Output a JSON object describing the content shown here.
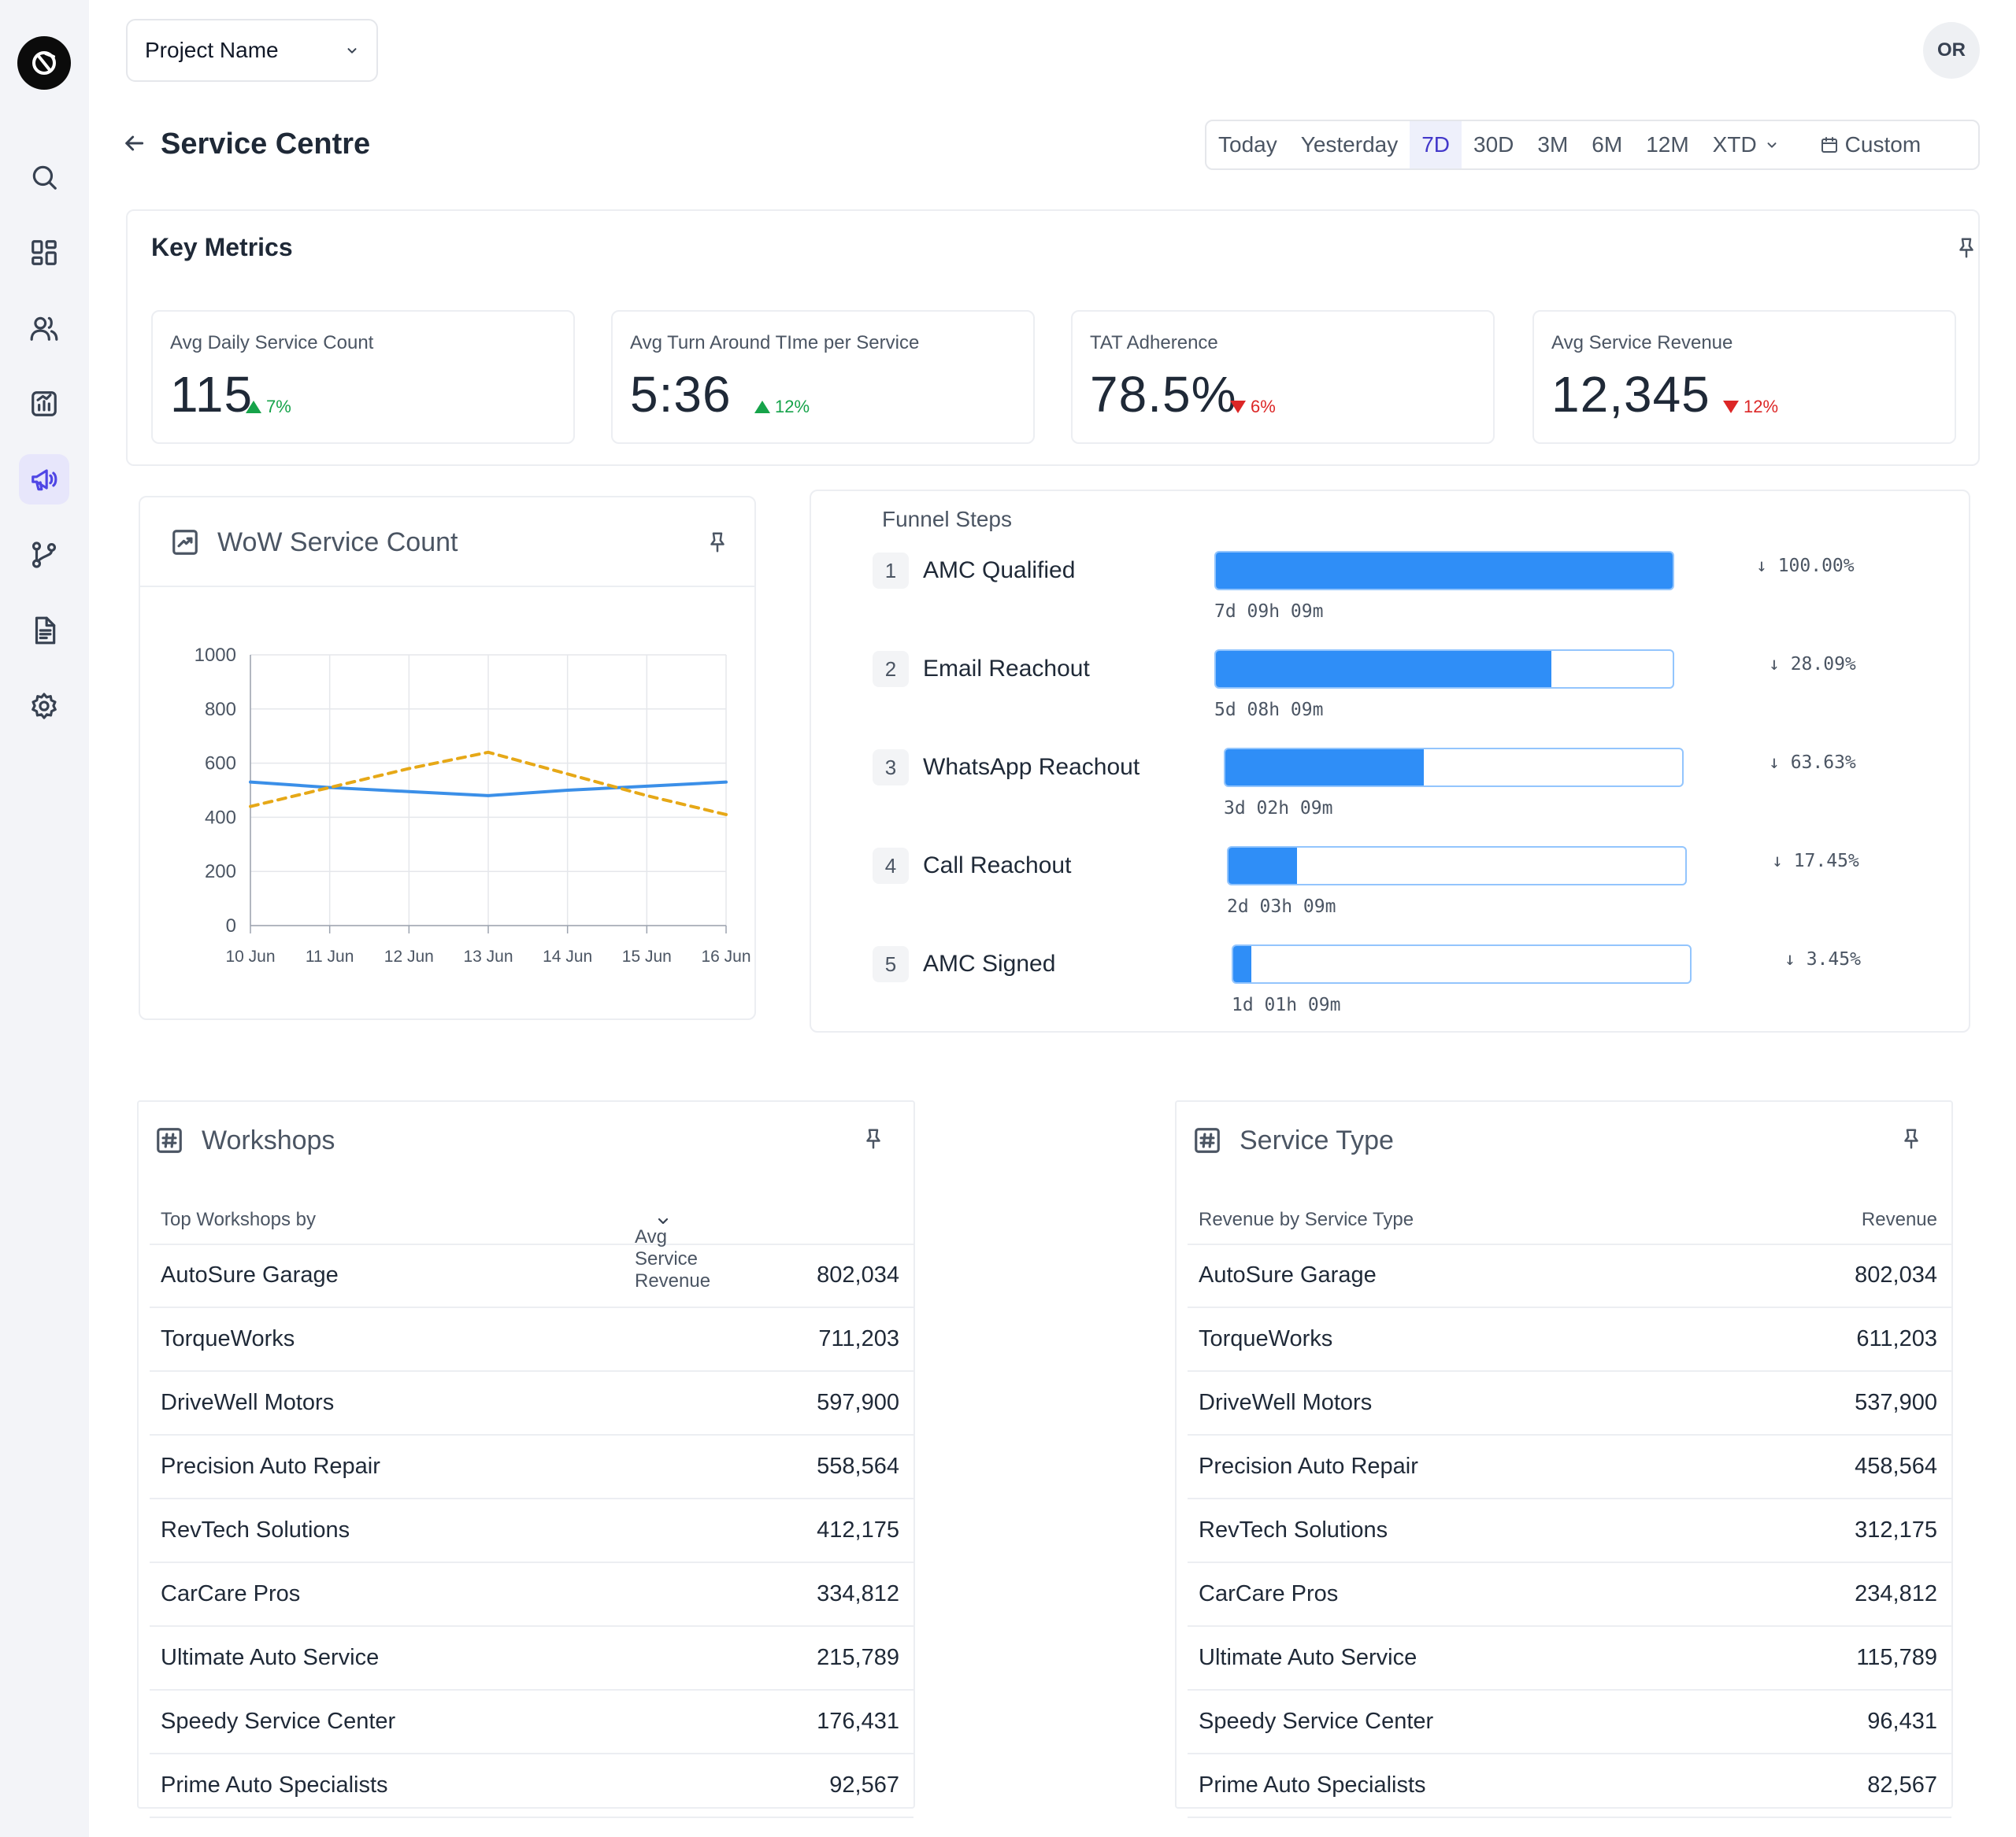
{
  "header": {
    "project_select": "Project Name",
    "avatar_initials": "OR",
    "page_title": "Service Centre"
  },
  "date_range": {
    "options": [
      "Today",
      "Yesterday",
      "7D",
      "30D",
      "3M",
      "6M",
      "12M",
      "XTD",
      "Custom"
    ],
    "selected": "7D"
  },
  "sidebar": {
    "items": [
      "search-icon",
      "dashboard-icon",
      "users-icon",
      "analytics-icon",
      "megaphone-icon",
      "branch-icon",
      "document-icon",
      "settings-icon"
    ],
    "active": "megaphone-icon"
  },
  "key_metrics": {
    "title": "Key Metrics",
    "cards": [
      {
        "label": "Avg Daily Service Count",
        "value": "115",
        "delta": "7%",
        "direction": "up"
      },
      {
        "label": "Avg Turn Around TIme per Service",
        "value": "5:36",
        "delta": "12%",
        "direction": "up"
      },
      {
        "label": "TAT Adherence",
        "value": "78.5%",
        "delta": "6%",
        "direction": "down"
      },
      {
        "label": "Avg Service Revenue",
        "value": "12,345",
        "delta": "12%",
        "direction": "down"
      }
    ]
  },
  "wow_panel": {
    "title": "WoW Service Count"
  },
  "chart_data": {
    "type": "line",
    "title": "WoW Service Count",
    "x": [
      "10 Jun",
      "11 Jun",
      "12 Jun",
      "13 Jun",
      "14 Jun",
      "15 Jun",
      "16 Jun"
    ],
    "y_ticks": [
      "1000",
      "800",
      "600",
      "400",
      "200",
      "0"
    ],
    "ylim": [
      0,
      1000
    ],
    "grid": true,
    "series": [
      {
        "values": [
          530,
          510,
          495,
          480,
          500,
          515,
          530
        ],
        "color": "#3b8fe8",
        "style": "solid"
      },
      {
        "values": [
          440,
          510,
          580,
          640,
          560,
          480,
          410
        ],
        "color": "#e6a817",
        "style": "dashed"
      }
    ]
  },
  "funnel": {
    "title": "Funnel Steps",
    "steps": [
      {
        "num": "1",
        "label": "AMC Qualified",
        "fill": 1.0,
        "time": "7d 09h 09m",
        "pct": "↓ 100.00%"
      },
      {
        "num": "2",
        "label": "Email Reachout",
        "fill": 0.735,
        "time": "5d 08h 09m",
        "pct": "↓ 28.09%"
      },
      {
        "num": "3",
        "label": "WhatsApp Reachout",
        "fill": 0.435,
        "time": "3d 02h 09m",
        "pct": "↓ 63.63%"
      },
      {
        "num": "4",
        "label": "Call Reachout",
        "fill": 0.15,
        "time": "2d 03h 09m",
        "pct": "↓ 17.45%"
      },
      {
        "num": "5",
        "label": "AMC Signed",
        "fill": 0.04,
        "time": "1d 01h 09m",
        "pct": "↓ 3.45%"
      }
    ]
  },
  "workshops": {
    "title": "Workshops",
    "col1": "Top Workshops by",
    "col2": "Avg Service Revenue",
    "rows": [
      {
        "name": "AutoSure Garage",
        "value": "802,034"
      },
      {
        "name": "TorqueWorks",
        "value": "711,203"
      },
      {
        "name": "DriveWell Motors",
        "value": "597,900"
      },
      {
        "name": "Precision Auto Repair",
        "value": "558,564"
      },
      {
        "name": "RevTech Solutions",
        "value": "412,175"
      },
      {
        "name": "CarCare Pros",
        "value": "334,812"
      },
      {
        "name": "Ultimate Auto Service",
        "value": "215,789"
      },
      {
        "name": "Speedy Service Center",
        "value": "176,431"
      },
      {
        "name": "Prime Auto Specialists",
        "value": "92,567"
      }
    ]
  },
  "service_type": {
    "title": "Service Type",
    "col1": "Revenue by Service Type",
    "col2": "Revenue",
    "rows": [
      {
        "name": "AutoSure Garage",
        "value": "802,034"
      },
      {
        "name": "TorqueWorks",
        "value": "611,203"
      },
      {
        "name": "DriveWell Motors",
        "value": "537,900"
      },
      {
        "name": "Precision Auto Repair",
        "value": "458,564"
      },
      {
        "name": "RevTech Solutions",
        "value": "312,175"
      },
      {
        "name": "CarCare Pros",
        "value": "234,812"
      },
      {
        "name": "Ultimate Auto Service",
        "value": "115,789"
      },
      {
        "name": "Speedy Service Center",
        "value": "96,431"
      },
      {
        "name": "Prime Auto Specialists",
        "value": "82,567"
      }
    ]
  }
}
